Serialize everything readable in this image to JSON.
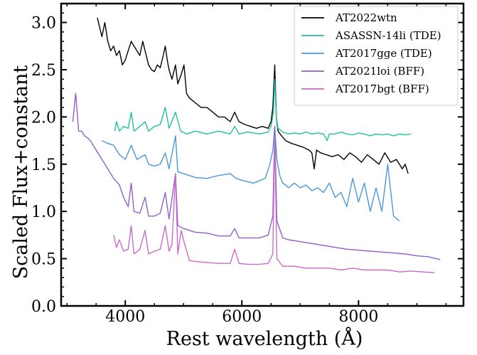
{
  "chart_data": {
    "type": "line",
    "xlabel": "Rest wavelength (Å)",
    "ylabel": "Scaled Flux+constant",
    "xlim": [
      2900,
      9800
    ],
    "ylim": [
      0.0,
      3.2
    ],
    "xticks": [
      4000,
      6000,
      8000
    ],
    "xtick_labels": [
      "4000",
      "6000",
      "8000"
    ],
    "yticks": [
      0.0,
      0.5,
      1.0,
      1.5,
      2.0,
      2.5,
      3.0
    ],
    "ytick_labels": [
      "0.0",
      "0.5",
      "1.0",
      "1.5",
      "2.0",
      "2.5",
      "3.0"
    ],
    "grid": false,
    "legend_position": "top-right",
    "series": [
      {
        "name": "AT2022wtn",
        "color": "#000000",
        "x": [
          3520,
          3560,
          3600,
          3650,
          3700,
          3750,
          3800,
          3850,
          3900,
          3950,
          4000,
          4050,
          4102,
          4150,
          4200,
          4250,
          4300,
          4340,
          4400,
          4450,
          4500,
          4550,
          4600,
          4650,
          4686,
          4720,
          4750,
          4800,
          4861,
          4900,
          4959,
          5007,
          5050,
          5100,
          5200,
          5300,
          5400,
          5500,
          5600,
          5700,
          5800,
          5876,
          5950,
          6050,
          6150,
          6250,
          6350,
          6450,
          6500,
          6530,
          6563,
          6590,
          6620,
          6680,
          6750,
          6850,
          6950,
          7050,
          7150,
          7200,
          7240,
          7280,
          7350,
          7450,
          7550,
          7650,
          7750,
          7850,
          7950,
          8050,
          8150,
          8250,
          8350,
          8450,
          8550,
          8650,
          8750,
          8800,
          8850
        ],
        "y": [
          3.05,
          2.95,
          2.85,
          3.0,
          2.8,
          2.7,
          2.75,
          2.65,
          2.7,
          2.55,
          2.6,
          2.7,
          2.8,
          2.75,
          2.7,
          2.65,
          2.8,
          2.7,
          2.55,
          2.5,
          2.48,
          2.55,
          2.52,
          2.65,
          2.75,
          2.6,
          2.5,
          2.4,
          2.55,
          2.35,
          2.45,
          2.55,
          2.25,
          2.2,
          2.15,
          2.1,
          2.1,
          2.05,
          2.0,
          2.0,
          1.95,
          2.05,
          1.95,
          1.92,
          1.9,
          1.88,
          1.9,
          1.88,
          1.95,
          2.1,
          2.55,
          2.0,
          1.85,
          1.8,
          1.75,
          1.72,
          1.7,
          1.68,
          1.65,
          1.62,
          1.45,
          1.65,
          1.62,
          1.6,
          1.58,
          1.6,
          1.55,
          1.62,
          1.58,
          1.52,
          1.6,
          1.55,
          1.5,
          1.62,
          1.52,
          1.55,
          1.45,
          1.5,
          1.4
        ]
      },
      {
        "name": "ASASSN-14li (TDE)",
        "color": "#20c0a0",
        "x": [
          3820,
          3850,
          3900,
          3970,
          4050,
          4102,
          4150,
          4250,
          4340,
          4400,
          4500,
          4600,
          4686,
          4750,
          4861,
          4950,
          5050,
          5200,
          5400,
          5600,
          5800,
          5876,
          5950,
          6100,
          6300,
          6450,
          6500,
          6540,
          6563,
          6590,
          6620,
          6700,
          6800,
          6900,
          7000,
          7100,
          7200,
          7300,
          7400,
          7460,
          7500,
          7600,
          7700,
          7800,
          7900,
          8000,
          8100,
          8200,
          8300,
          8400,
          8500,
          8600,
          8700,
          8800,
          8900
        ],
        "y": [
          1.85,
          1.95,
          1.85,
          1.9,
          1.88,
          2.05,
          1.85,
          1.9,
          1.95,
          1.85,
          1.9,
          1.92,
          2.1,
          1.88,
          2.05,
          1.85,
          1.82,
          1.85,
          1.82,
          1.85,
          1.82,
          1.9,
          1.82,
          1.84,
          1.82,
          1.84,
          1.9,
          2.05,
          2.4,
          2.0,
          1.88,
          1.84,
          1.82,
          1.83,
          1.82,
          1.84,
          1.82,
          1.83,
          1.82,
          1.75,
          1.82,
          1.82,
          1.84,
          1.82,
          1.81,
          1.83,
          1.82,
          1.8,
          1.82,
          1.81,
          1.82,
          1.8,
          1.82,
          1.81,
          1.82
        ]
      },
      {
        "name": "AT2017gge (TDE)",
        "color": "#4a98d8",
        "x": [
          3600,
          3700,
          3800,
          3850,
          3900,
          4000,
          4102,
          4200,
          4340,
          4400,
          4500,
          4600,
          4686,
          4750,
          4861,
          4900,
          5000,
          5100,
          5200,
          5400,
          5600,
          5800,
          5900,
          6000,
          6200,
          6400,
          6480,
          6530,
          6563,
          6600,
          6650,
          6700,
          6750,
          6800,
          6900,
          7000,
          7100,
          7200,
          7300,
          7400,
          7500,
          7600,
          7700,
          7800,
          7900,
          8000,
          8100,
          8200,
          8300,
          8400,
          8500,
          8600,
          8700
        ],
        "y": [
          1.75,
          1.72,
          1.7,
          1.65,
          1.6,
          1.55,
          1.7,
          1.55,
          1.6,
          1.5,
          1.48,
          1.5,
          1.62,
          1.45,
          1.8,
          1.42,
          1.4,
          1.38,
          1.36,
          1.35,
          1.38,
          1.4,
          1.35,
          1.33,
          1.3,
          1.35,
          1.5,
          1.65,
          1.9,
          1.55,
          1.38,
          1.3,
          1.28,
          1.25,
          1.3,
          1.25,
          1.28,
          1.22,
          1.25,
          1.2,
          1.3,
          1.15,
          1.2,
          1.05,
          1.35,
          1.1,
          1.3,
          1.0,
          1.25,
          1.0,
          1.5,
          0.95,
          0.9
        ]
      },
      {
        "name": "AT2021loi (BFF)",
        "color": "#9060c8",
        "x": [
          3100,
          3150,
          3200,
          3250,
          3300,
          3350,
          3400,
          3500,
          3600,
          3700,
          3800,
          3900,
          3970,
          4050,
          4102,
          4150,
          4250,
          4340,
          4400,
          4500,
          4600,
          4686,
          4750,
          4861,
          4900,
          5000,
          5100,
          5200,
          5400,
          5600,
          5800,
          5876,
          5950,
          6100,
          6300,
          6450,
          6530,
          6563,
          6600,
          6700,
          6800,
          7000,
          7200,
          7400,
          7600,
          7800,
          8000,
          8200,
          8400,
          8600,
          8800,
          9000,
          9200,
          9400
        ],
        "y": [
          1.95,
          2.25,
          1.85,
          1.85,
          1.8,
          1.78,
          1.75,
          1.65,
          1.55,
          1.45,
          1.35,
          1.28,
          1.15,
          1.05,
          1.3,
          1.0,
          0.98,
          1.15,
          0.95,
          0.95,
          0.98,
          1.2,
          0.92,
          1.4,
          0.85,
          0.82,
          0.8,
          0.78,
          0.77,
          0.74,
          0.74,
          0.82,
          0.72,
          0.72,
          0.72,
          0.75,
          0.95,
          1.9,
          0.9,
          0.72,
          0.7,
          0.68,
          0.66,
          0.64,
          0.62,
          0.6,
          0.59,
          0.58,
          0.57,
          0.56,
          0.55,
          0.53,
          0.52,
          0.49
        ]
      },
      {
        "name": "AT2017bgt (BFF)",
        "color": "#c86cc8",
        "x": [
          3800,
          3850,
          3900,
          3970,
          4050,
          4102,
          4150,
          4250,
          4340,
          4400,
          4500,
          4600,
          4686,
          4750,
          4800,
          4861,
          4900,
          4959,
          5007,
          5100,
          5200,
          5400,
          5600,
          5800,
          5876,
          5950,
          6100,
          6300,
          6450,
          6530,
          6563,
          6600,
          6700,
          6900,
          7100,
          7300,
          7500,
          7700,
          7900,
          8100,
          8300,
          8500,
          8700,
          8900,
          9100,
          9300
        ],
        "y": [
          0.75,
          0.62,
          0.7,
          0.58,
          0.6,
          0.85,
          0.55,
          0.6,
          0.8,
          0.55,
          0.58,
          0.6,
          0.85,
          0.58,
          0.65,
          1.4,
          0.55,
          0.8,
          0.68,
          0.48,
          0.47,
          0.46,
          0.45,
          0.45,
          0.6,
          0.45,
          0.44,
          0.44,
          0.45,
          0.55,
          1.8,
          0.5,
          0.42,
          0.42,
          0.4,
          0.4,
          0.4,
          0.38,
          0.4,
          0.38,
          0.38,
          0.38,
          0.36,
          0.37,
          0.36,
          0.35
        ]
      }
    ]
  }
}
